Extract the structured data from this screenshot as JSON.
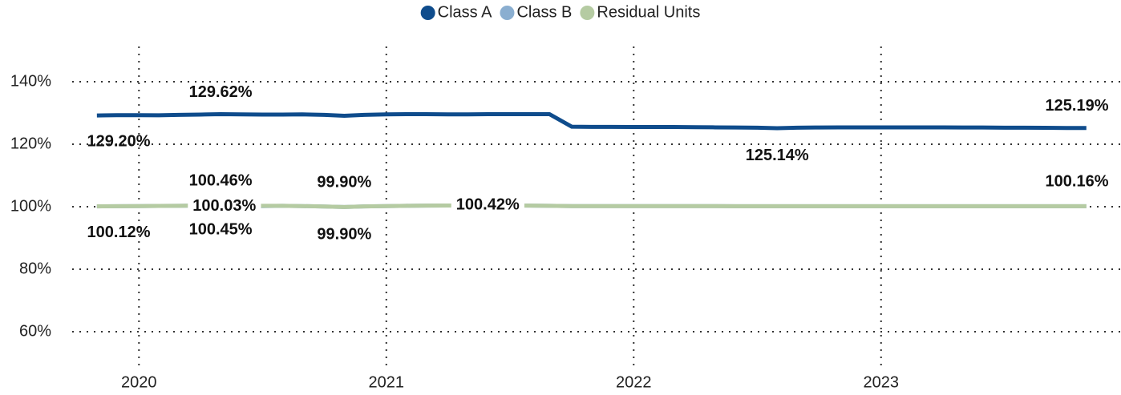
{
  "chart_data": {
    "type": "line",
    "x": [
      2019.83,
      2019.91,
      2020.0,
      2020.08,
      2020.16,
      2020.25,
      2020.33,
      2020.41,
      2020.5,
      2020.58,
      2020.66,
      2020.75,
      2020.83,
      2020.91,
      2021.0,
      2021.08,
      2021.16,
      2021.25,
      2021.33,
      2021.41,
      2021.5,
      2021.58,
      2021.66,
      2021.75,
      2021.83,
      2021.91,
      2022.0,
      2022.08,
      2022.16,
      2022.25,
      2022.33,
      2022.41,
      2022.5,
      2022.58,
      2022.66,
      2022.75,
      2022.83,
      2022.91,
      2023.0,
      2023.08,
      2023.16,
      2023.25,
      2023.33,
      2023.41,
      2023.5,
      2023.58,
      2023.66,
      2023.75,
      2023.83
    ],
    "series": [
      {
        "name": "Class A",
        "color": "#0f4c8c",
        "values": [
          129.2,
          129.3,
          129.3,
          129.25,
          129.4,
          129.5,
          129.62,
          129.55,
          129.5,
          129.5,
          129.55,
          129.4,
          129.1,
          129.4,
          129.55,
          129.6,
          129.6,
          129.55,
          129.55,
          129.6,
          129.6,
          129.6,
          129.6,
          125.6,
          125.55,
          125.55,
          125.5,
          125.5,
          125.5,
          125.45,
          125.4,
          125.35,
          125.3,
          125.14,
          125.3,
          125.35,
          125.4,
          125.4,
          125.4,
          125.4,
          125.4,
          125.4,
          125.35,
          125.35,
          125.3,
          125.3,
          125.25,
          125.2,
          125.19
        ],
        "value_labels": [
          "129.20%",
          null,
          null,
          null,
          null,
          null,
          "129.62%",
          null,
          null,
          null,
          null,
          null,
          null,
          null,
          null,
          null,
          null,
          null,
          null,
          null,
          null,
          null,
          null,
          null,
          null,
          null,
          null,
          null,
          null,
          null,
          null,
          null,
          null,
          "125.14%",
          null,
          null,
          null,
          null,
          null,
          null,
          null,
          null,
          null,
          null,
          null,
          null,
          null,
          null,
          "125.19%"
        ]
      },
      {
        "name": "Class B",
        "color": "#8aaed0",
        "values": [
          100.1,
          100.15,
          100.2,
          100.25,
          100.3,
          100.4,
          100.46,
          100.03,
          100.2,
          100.3,
          100.2,
          100.05,
          99.9,
          100.1,
          100.2,
          100.3,
          100.35,
          100.4,
          100.4,
          100.42,
          100.4,
          100.35,
          100.3,
          100.2,
          100.2,
          100.2,
          100.2,
          100.2,
          100.2,
          100.2,
          100.2,
          100.15,
          100.15,
          100.15,
          100.15,
          100.15,
          100.15,
          100.15,
          100.15,
          100.15,
          100.15,
          100.15,
          100.15,
          100.15,
          100.15,
          100.15,
          100.15,
          100.15,
          100.15
        ],
        "value_labels": [
          null,
          null,
          null,
          null,
          null,
          null,
          "100.46%",
          "100.03%",
          null,
          null,
          null,
          null,
          "99.90%",
          null,
          null,
          null,
          null,
          null,
          null,
          "100.42%",
          null,
          null,
          null,
          null,
          null,
          null,
          null,
          null,
          null,
          null,
          null,
          null,
          null,
          null,
          null,
          null,
          null,
          null,
          null,
          null,
          null,
          null,
          null,
          null,
          null,
          null,
          null,
          null,
          null
        ]
      },
      {
        "name": "Residual Units",
        "color": "#b5cba2",
        "values": [
          100.12,
          100.15,
          100.2,
          100.25,
          100.3,
          100.4,
          100.45,
          100.4,
          100.3,
          100.3,
          100.2,
          100.05,
          99.9,
          100.1,
          100.2,
          100.3,
          100.35,
          100.4,
          100.4,
          100.4,
          100.4,
          100.35,
          100.3,
          100.2,
          100.2,
          100.2,
          100.2,
          100.2,
          100.2,
          100.2,
          100.2,
          100.15,
          100.15,
          100.15,
          100.15,
          100.15,
          100.15,
          100.15,
          100.15,
          100.15,
          100.15,
          100.15,
          100.15,
          100.15,
          100.15,
          100.15,
          100.15,
          100.16,
          100.16
        ],
        "value_labels": [
          "100.12%",
          null,
          null,
          null,
          null,
          null,
          "100.45%",
          null,
          null,
          null,
          null,
          null,
          "99.90%",
          null,
          null,
          null,
          null,
          null,
          null,
          null,
          null,
          null,
          null,
          null,
          null,
          null,
          null,
          null,
          null,
          null,
          null,
          null,
          null,
          null,
          null,
          null,
          null,
          null,
          null,
          null,
          null,
          null,
          null,
          null,
          null,
          null,
          null,
          null,
          "100.16%"
        ]
      }
    ],
    "xlim": [
      2019.73,
      2023.97
    ],
    "xticks": [
      2020,
      2021,
      2022,
      2023
    ],
    "ylim": [
      50,
      150
    ],
    "yticks": [
      {
        "value": 60,
        "label": "60%"
      },
      {
        "value": 80,
        "label": "80%"
      },
      {
        "value": 100,
        "label": "100%"
      },
      {
        "value": 120,
        "label": "120%"
      },
      {
        "value": 140,
        "label": "140%"
      }
    ],
    "grid": true,
    "legend": "top"
  }
}
